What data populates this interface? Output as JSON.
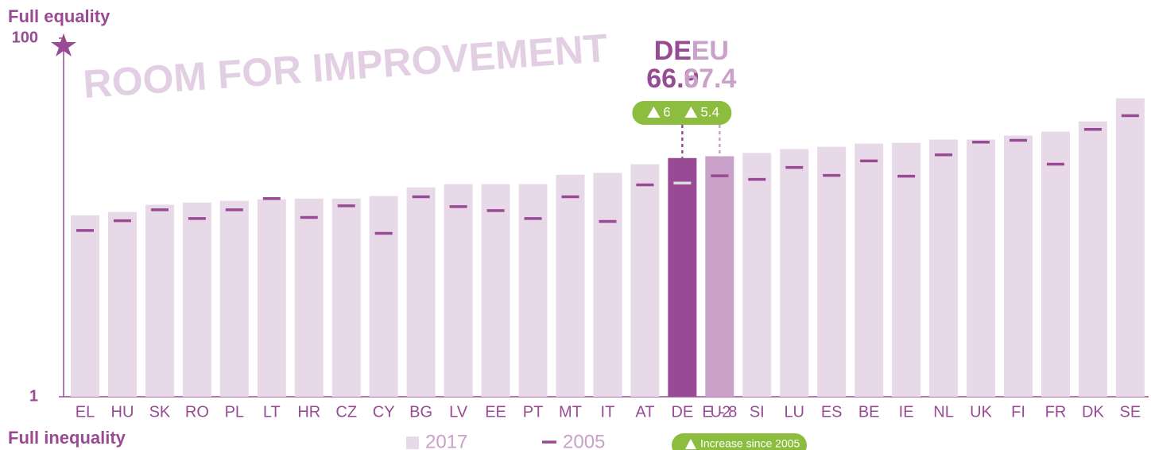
{
  "chart_data": {
    "type": "bar",
    "title_top": "Full equality",
    "title_bottom": "Full inequality",
    "watermark": "ROOM FOR IMPROVEMENT",
    "categories": [
      "EL",
      "HU",
      "SK",
      "RO",
      "PL",
      "LT",
      "HR",
      "CZ",
      "CY",
      "BG",
      "LV",
      "EE",
      "PT",
      "MT",
      "IT",
      "AT",
      "DE",
      "EU-28",
      "SI",
      "LU",
      "ES",
      "BE",
      "IE",
      "NL",
      "UK",
      "FI",
      "FR",
      "DK",
      "SE"
    ],
    "series": [
      {
        "name": "2017",
        "color": "#e8d9e8",
        "values": [
          51.1,
          52.0,
          54.0,
          54.6,
          55.1,
          55.5,
          55.7,
          55.7,
          56.4,
          58.8,
          59.7,
          59.7,
          59.7,
          62.3,
          62.8,
          65.2,
          66.9,
          67.4,
          68.3,
          69.4,
          70.0,
          70.9,
          71.1,
          72.0,
          72.0,
          73.1,
          74.2,
          77.0,
          83.4
        ]
      },
      {
        "name": "2005",
        "color": "#984b94",
        "values": [
          46.9,
          49.6,
          52.6,
          50.2,
          52.6,
          55.7,
          50.5,
          53.7,
          46.1,
          56.2,
          53.5,
          52.4,
          50.2,
          56.2,
          49.4,
          59.5,
          60.0,
          62.0,
          61.0,
          64.3,
          62.1,
          66.1,
          61.9,
          67.8,
          71.3,
          71.8,
          65.2,
          74.8,
          78.6
        ]
      }
    ],
    "highlights": [
      {
        "label": "DE",
        "category": "DE",
        "change": 6.9,
        "color": "#984b94",
        "marker_color": "#dddddd"
      },
      {
        "label": "EU",
        "category": "EU-28",
        "change": 5.4,
        "color": "#c9a1c9",
        "marker_color": "#984b94"
      }
    ],
    "badge_color": "#8cbd3f",
    "badge_legend": "Increase since 2005",
    "ylim": [
      1,
      100
    ],
    "yticks": [
      1,
      100
    ]
  }
}
